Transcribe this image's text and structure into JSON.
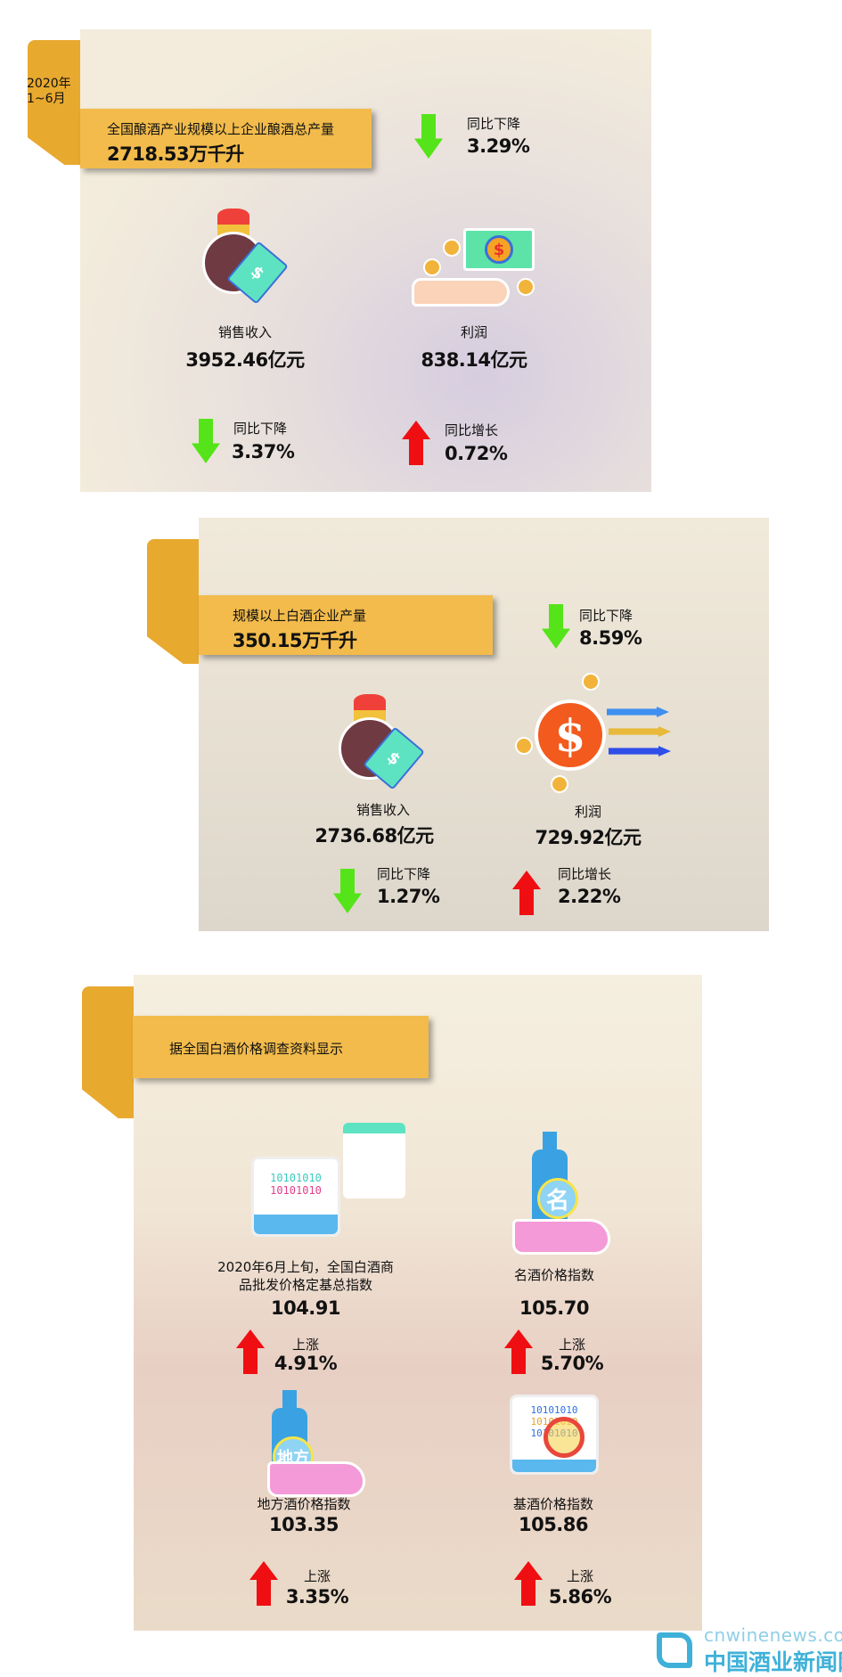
{
  "section1": {
    "period": [
      "2020年",
      "1~6月"
    ],
    "banner_title": "全国酿酒产业规模以上企业酿酒总产量",
    "banner_value": "2718.53万千升",
    "output_change": {
      "label": "同比下降",
      "value": "3.29%",
      "direction": "down"
    },
    "revenue": {
      "label": "销售收入",
      "value": "3952.46亿元",
      "change_label": "同比下降",
      "change_value": "3.37%",
      "direction": "down"
    },
    "profit": {
      "label": "利润",
      "value": "838.14亿元",
      "change_label": "同比增长",
      "change_value": "0.72%",
      "direction": "up"
    }
  },
  "section2": {
    "banner_title": "规模以上白酒企业产量",
    "banner_value": "350.15万千升",
    "output_change": {
      "label": "同比下降",
      "value": "8.59%",
      "direction": "down"
    },
    "revenue": {
      "label": "销售收入",
      "value": "2736.68亿元",
      "change_label": "同比下降",
      "change_value": "1.27%",
      "direction": "down"
    },
    "profit": {
      "label": "利润",
      "value": "729.92亿元",
      "change_label": "同比增长",
      "change_value": "2.22%",
      "direction": "up"
    }
  },
  "section3": {
    "banner_title": "据全国白酒价格调查资料显示",
    "items": [
      {
        "label_lines": [
          "2020年6月上旬，全国白酒商",
          "品批发价格定基总指数"
        ],
        "value": "104.91",
        "change_label": "上涨",
        "change_value": "4.91%",
        "icon": "computer-data-icon",
        "monitor_text": [
          "10101010",
          "10101010"
        ]
      },
      {
        "label_lines": [
          "名酒价格指数"
        ],
        "value": "105.70",
        "change_label": "上涨",
        "change_value": "5.70%",
        "icon": "famous-liquor-bottle-icon",
        "badge": "名"
      },
      {
        "label_lines": [
          "地方酒价格指数"
        ],
        "value": "103.35",
        "change_label": "上涨",
        "change_value": "3.35%",
        "icon": "local-liquor-bottle-icon",
        "badge": "地方"
      },
      {
        "label_lines": [
          "基酒价格指数"
        ],
        "value": "105.86",
        "change_label": "上涨",
        "change_value": "5.86%",
        "icon": "base-liquor-magnifier-icon",
        "monitor_text": [
          "10101010",
          "10101010",
          "10101010"
        ]
      }
    ]
  },
  "watermark": {
    "domain": "cnwinenews.com",
    "name": "中国酒业新闻网"
  },
  "colors": {
    "tab": "#e8a92f",
    "banner": "#f2bb4b",
    "down_arrow": "#55e41a",
    "up_arrow": "#ef0f12",
    "watermark": "#3fb1d8"
  }
}
